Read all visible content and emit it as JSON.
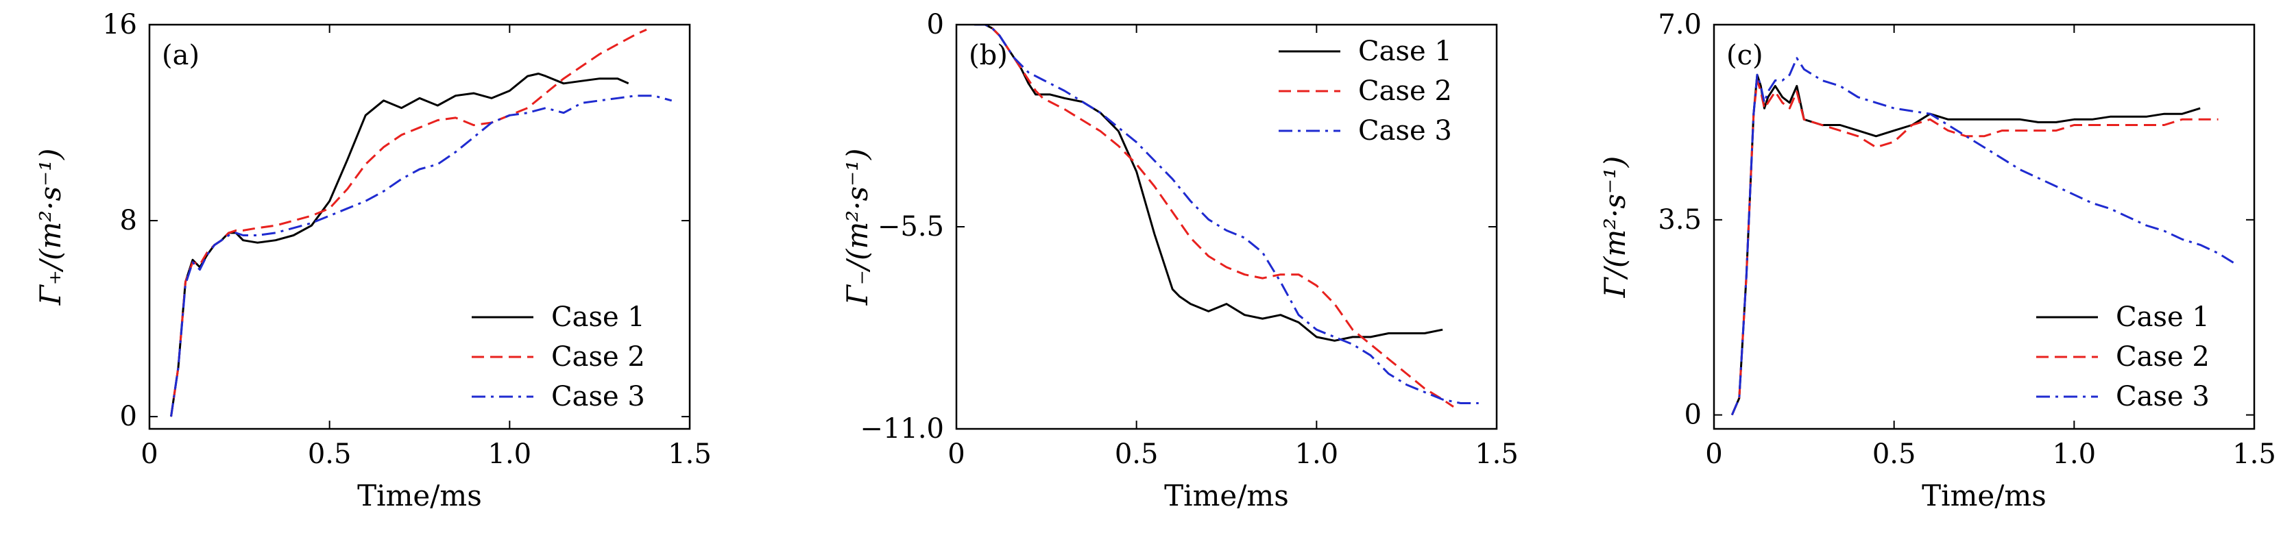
{
  "chart_data": [
    {
      "type": "line",
      "panel_label": "(a)",
      "xlabel": "Time/ms",
      "ylabel": "Γ₊/(m²·s⁻¹)",
      "xlim": [
        0,
        1.5
      ],
      "ylim": [
        -0.5,
        16
      ],
      "xticks": [
        0,
        0.5,
        1.0,
        1.5
      ],
      "xtick_labels": [
        "0",
        "0.5",
        "1.0",
        "1.5"
      ],
      "yticks": [
        0,
        8,
        16
      ],
      "ytick_labels": [
        "0",
        "8",
        "16"
      ],
      "legend_position": "bottom-right",
      "series": [
        {
          "name": "Case 1",
          "color": "#000000",
          "dash": "solid",
          "x": [
            0.06,
            0.08,
            0.1,
            0.12,
            0.14,
            0.16,
            0.18,
            0.2,
            0.22,
            0.24,
            0.26,
            0.3,
            0.35,
            0.4,
            0.45,
            0.5,
            0.55,
            0.6,
            0.65,
            0.7,
            0.75,
            0.8,
            0.85,
            0.9,
            0.95,
            1.0,
            1.05,
            1.08,
            1.1,
            1.15,
            1.2,
            1.25,
            1.3,
            1.33
          ],
          "y": [
            0,
            2,
            5.5,
            6.4,
            6.1,
            6.6,
            7.0,
            7.2,
            7.5,
            7.5,
            7.2,
            7.1,
            7.2,
            7.4,
            7.8,
            8.8,
            10.5,
            12.3,
            12.9,
            12.6,
            13.0,
            12.7,
            13.1,
            13.2,
            13.0,
            13.3,
            13.9,
            14.0,
            13.9,
            13.6,
            13.7,
            13.8,
            13.8,
            13.6
          ]
        },
        {
          "name": "Case 2",
          "color": "#e8211e",
          "dash": "dashed",
          "x": [
            0.06,
            0.08,
            0.1,
            0.12,
            0.14,
            0.16,
            0.18,
            0.2,
            0.22,
            0.24,
            0.26,
            0.3,
            0.35,
            0.4,
            0.45,
            0.5,
            0.55,
            0.6,
            0.65,
            0.7,
            0.75,
            0.8,
            0.85,
            0.9,
            0.95,
            1.0,
            1.05,
            1.1,
            1.15,
            1.2,
            1.25,
            1.3,
            1.35,
            1.38
          ],
          "y": [
            0,
            2,
            5.5,
            6.3,
            6.2,
            6.7,
            7.0,
            7.2,
            7.5,
            7.6,
            7.6,
            7.7,
            7.8,
            8.0,
            8.2,
            8.5,
            9.3,
            10.3,
            11.0,
            11.5,
            11.8,
            12.1,
            12.2,
            11.9,
            12.0,
            12.3,
            12.6,
            13.2,
            13.8,
            14.3,
            14.8,
            15.2,
            15.6,
            15.8
          ]
        },
        {
          "name": "Case 3",
          "color": "#1f2bd0",
          "dash": "dashdot",
          "x": [
            0.06,
            0.08,
            0.1,
            0.12,
            0.14,
            0.16,
            0.18,
            0.2,
            0.22,
            0.24,
            0.26,
            0.3,
            0.35,
            0.4,
            0.45,
            0.5,
            0.55,
            0.6,
            0.65,
            0.7,
            0.75,
            0.8,
            0.85,
            0.9,
            0.95,
            1.0,
            1.05,
            1.1,
            1.15,
            1.2,
            1.25,
            1.3,
            1.35,
            1.4,
            1.45
          ],
          "y": [
            0,
            2,
            5.4,
            6.3,
            6.0,
            6.6,
            7.0,
            7.2,
            7.4,
            7.5,
            7.4,
            7.4,
            7.5,
            7.7,
            7.9,
            8.2,
            8.5,
            8.8,
            9.2,
            9.7,
            10.1,
            10.3,
            10.8,
            11.4,
            12.0,
            12.3,
            12.4,
            12.6,
            12.4,
            12.8,
            12.9,
            13.0,
            13.1,
            13.1,
            12.9
          ]
        }
      ]
    },
    {
      "type": "line",
      "panel_label": "(b)",
      "xlabel": "Time/ms",
      "ylabel": "Γ₋/(m²·s⁻¹)",
      "xlim": [
        0,
        1.5
      ],
      "ylim": [
        -11,
        0
      ],
      "xticks": [
        0,
        0.5,
        1.0,
        1.5
      ],
      "xtick_labels": [
        "0",
        "0.5",
        "1.0",
        "1.5"
      ],
      "yticks": [
        0,
        -5.5,
        -11
      ],
      "ytick_labels": [
        "0",
        "−5.5",
        "−11.0"
      ],
      "legend_position": "top-right",
      "series": [
        {
          "name": "Case 1",
          "color": "#000000",
          "dash": "solid",
          "x": [
            0.05,
            0.08,
            0.1,
            0.12,
            0.14,
            0.16,
            0.18,
            0.2,
            0.22,
            0.24,
            0.26,
            0.3,
            0.35,
            0.4,
            0.45,
            0.5,
            0.55,
            0.6,
            0.62,
            0.65,
            0.7,
            0.75,
            0.8,
            0.85,
            0.9,
            0.95,
            1.0,
            1.05,
            1.1,
            1.15,
            1.2,
            1.25,
            1.3,
            1.35
          ],
          "y": [
            0,
            0,
            -0.1,
            -0.3,
            -0.6,
            -0.9,
            -1.2,
            -1.6,
            -1.9,
            -1.9,
            -1.9,
            -2.0,
            -2.1,
            -2.4,
            -2.9,
            -4.0,
            -5.7,
            -7.2,
            -7.4,
            -7.6,
            -7.8,
            -7.6,
            -7.9,
            -8.0,
            -7.9,
            -8.1,
            -8.5,
            -8.6,
            -8.5,
            -8.5,
            -8.4,
            -8.4,
            -8.4,
            -8.3
          ]
        },
        {
          "name": "Case 2",
          "color": "#e8211e",
          "dash": "dashed",
          "x": [
            0.05,
            0.08,
            0.1,
            0.12,
            0.14,
            0.16,
            0.18,
            0.2,
            0.22,
            0.24,
            0.26,
            0.3,
            0.35,
            0.4,
            0.45,
            0.5,
            0.55,
            0.6,
            0.65,
            0.7,
            0.75,
            0.8,
            0.85,
            0.9,
            0.95,
            1.0,
            1.05,
            1.1,
            1.15,
            1.2,
            1.25,
            1.3,
            1.35,
            1.38
          ],
          "y": [
            0,
            0,
            -0.1,
            -0.3,
            -0.6,
            -0.9,
            -1.2,
            -1.5,
            -1.8,
            -2.0,
            -2.1,
            -2.3,
            -2.6,
            -2.9,
            -3.3,
            -3.8,
            -4.4,
            -5.1,
            -5.8,
            -6.3,
            -6.6,
            -6.8,
            -6.9,
            -6.8,
            -6.8,
            -7.1,
            -7.6,
            -8.3,
            -8.7,
            -9.1,
            -9.5,
            -9.9,
            -10.2,
            -10.4
          ]
        },
        {
          "name": "Case 3",
          "color": "#1f2bd0",
          "dash": "dashdot",
          "x": [
            0.05,
            0.08,
            0.1,
            0.12,
            0.14,
            0.16,
            0.18,
            0.2,
            0.22,
            0.24,
            0.26,
            0.3,
            0.35,
            0.4,
            0.45,
            0.5,
            0.55,
            0.6,
            0.65,
            0.7,
            0.75,
            0.8,
            0.85,
            0.9,
            0.95,
            1.0,
            1.05,
            1.1,
            1.15,
            1.2,
            1.25,
            1.3,
            1.35,
            1.4,
            1.45
          ],
          "y": [
            0,
            0,
            -0.1,
            -0.3,
            -0.6,
            -0.9,
            -1.1,
            -1.3,
            -1.4,
            -1.5,
            -1.6,
            -1.8,
            -2.1,
            -2.4,
            -2.8,
            -3.2,
            -3.7,
            -4.2,
            -4.8,
            -5.3,
            -5.6,
            -5.8,
            -6.2,
            -7.0,
            -7.9,
            -8.3,
            -8.5,
            -8.7,
            -9.0,
            -9.5,
            -9.8,
            -10.0,
            -10.2,
            -10.3,
            -10.3
          ]
        }
      ]
    },
    {
      "type": "line",
      "panel_label": "(c)",
      "xlabel": "Time/ms",
      "ylabel": "Γ/(m²·s⁻¹)",
      "xlim": [
        0,
        1.5
      ],
      "ylim": [
        -0.25,
        7.0
      ],
      "xticks": [
        0,
        0.5,
        1.0,
        1.5
      ],
      "xtick_labels": [
        "0",
        "0.5",
        "1.0",
        "1.5"
      ],
      "yticks": [
        0,
        3.5,
        7.0
      ],
      "ytick_labels": [
        "0",
        "3.5",
        "7.0"
      ],
      "legend_position": "bottom-right",
      "series": [
        {
          "name": "Case 1",
          "color": "#000000",
          "dash": "solid",
          "x": [
            0.05,
            0.07,
            0.09,
            0.11,
            0.12,
            0.13,
            0.14,
            0.15,
            0.17,
            0.19,
            0.21,
            0.23,
            0.25,
            0.3,
            0.35,
            0.4,
            0.45,
            0.5,
            0.55,
            0.6,
            0.65,
            0.7,
            0.75,
            0.8,
            0.85,
            0.9,
            0.95,
            1.0,
            1.05,
            1.1,
            1.15,
            1.2,
            1.25,
            1.3,
            1.35
          ],
          "y": [
            0,
            0.3,
            2.5,
            5.4,
            6.1,
            5.9,
            5.5,
            5.7,
            5.9,
            5.7,
            5.6,
            5.9,
            5.3,
            5.2,
            5.2,
            5.1,
            5.0,
            5.1,
            5.2,
            5.4,
            5.3,
            5.3,
            5.3,
            5.3,
            5.3,
            5.25,
            5.25,
            5.3,
            5.3,
            5.35,
            5.35,
            5.35,
            5.4,
            5.4,
            5.5
          ]
        },
        {
          "name": "Case 2",
          "color": "#e8211e",
          "dash": "dashed",
          "x": [
            0.05,
            0.07,
            0.09,
            0.11,
            0.12,
            0.13,
            0.14,
            0.15,
            0.17,
            0.19,
            0.21,
            0.23,
            0.25,
            0.3,
            0.35,
            0.4,
            0.45,
            0.5,
            0.55,
            0.6,
            0.65,
            0.7,
            0.75,
            0.8,
            0.85,
            0.9,
            0.95,
            1.0,
            1.05,
            1.1,
            1.15,
            1.2,
            1.25,
            1.3,
            1.35,
            1.4
          ],
          "y": [
            0,
            0.3,
            2.5,
            5.4,
            6.0,
            5.8,
            5.5,
            5.6,
            5.8,
            5.6,
            5.5,
            5.8,
            5.3,
            5.2,
            5.1,
            5.0,
            4.8,
            4.9,
            5.2,
            5.3,
            5.1,
            5.0,
            5.0,
            5.1,
            5.1,
            5.1,
            5.1,
            5.2,
            5.2,
            5.2,
            5.2,
            5.2,
            5.2,
            5.3,
            5.3,
            5.3
          ]
        },
        {
          "name": "Case 3",
          "color": "#1f2bd0",
          "dash": "dashdot",
          "x": [
            0.05,
            0.07,
            0.09,
            0.11,
            0.12,
            0.13,
            0.14,
            0.15,
            0.17,
            0.19,
            0.21,
            0.23,
            0.25,
            0.3,
            0.35,
            0.4,
            0.45,
            0.5,
            0.55,
            0.6,
            0.65,
            0.7,
            0.75,
            0.8,
            0.85,
            0.9,
            0.95,
            1.0,
            1.05,
            1.1,
            1.15,
            1.2,
            1.25,
            1.3,
            1.35,
            1.4,
            1.45
          ],
          "y": [
            0,
            0.3,
            2.5,
            5.4,
            6.1,
            5.9,
            5.6,
            5.8,
            6.0,
            6.0,
            6.1,
            6.4,
            6.2,
            6.0,
            5.9,
            5.7,
            5.6,
            5.5,
            5.45,
            5.4,
            5.2,
            5.0,
            4.8,
            4.6,
            4.4,
            4.25,
            4.1,
            3.95,
            3.8,
            3.7,
            3.55,
            3.4,
            3.3,
            3.15,
            3.05,
            2.9,
            2.7
          ]
        }
      ]
    }
  ]
}
